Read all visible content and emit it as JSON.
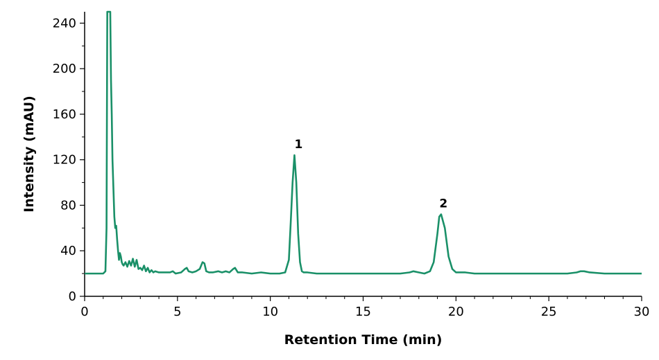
{
  "chart_data": {
    "type": "line",
    "title": "",
    "xlabel": "Retention Time (min)",
    "ylabel": "Intensity (mAU)",
    "xlim": [
      0,
      30
    ],
    "ylim": [
      0,
      250
    ],
    "x_ticks": [
      0,
      5,
      10,
      15,
      20,
      25,
      30
    ],
    "y_ticks": [
      0,
      40,
      80,
      120,
      160,
      200,
      240
    ],
    "grid": false,
    "line_color": "#1a9068",
    "series": [
      {
        "x": [
          0,
          1.0,
          1.12,
          1.18,
          1.22,
          1.26,
          1.3,
          1.34,
          1.38,
          1.42,
          1.46,
          1.5,
          1.55,
          1.6,
          1.65,
          1.7,
          1.75,
          1.8,
          1.85,
          1.9,
          1.95,
          2.0,
          2.05,
          2.1,
          2.2,
          2.3,
          2.4,
          2.5,
          2.6,
          2.7,
          2.8,
          2.9,
          3.0,
          3.1,
          3.2,
          3.3,
          3.4,
          3.5,
          3.6,
          3.7,
          3.8,
          4.0,
          4.3,
          4.6,
          4.75,
          4.9,
          5.2,
          5.4,
          5.5,
          5.6,
          5.8,
          6.0,
          6.2,
          6.35,
          6.45,
          6.55,
          6.7,
          6.9,
          7.2,
          7.4,
          7.6,
          7.8,
          8.0,
          8.1,
          8.25,
          8.5,
          9.0,
          9.5,
          10.0,
          10.5,
          10.8,
          11.0,
          11.1,
          11.2,
          11.3,
          11.4,
          11.5,
          11.6,
          11.7,
          11.8,
          12.0,
          12.5,
          13.0,
          14.0,
          15.0,
          16.0,
          17.0,
          17.5,
          17.7,
          18.0,
          18.3,
          18.6,
          18.8,
          19.0,
          19.1,
          19.2,
          19.4,
          19.6,
          19.8,
          20.0,
          20.5,
          21.0,
          22.0,
          23.0,
          24.0,
          25.0,
          26.0,
          26.5,
          26.7,
          26.9,
          27.2,
          28.0,
          29.0,
          30.0
        ],
        "values": [
          20,
          20,
          22,
          60,
          250,
          250,
          250,
          250,
          250,
          190,
          160,
          120,
          95,
          70,
          60,
          62,
          50,
          40,
          32,
          38,
          35,
          30,
          28,
          27,
          30,
          26,
          31,
          27,
          33,
          26,
          32,
          24,
          25,
          23,
          27,
          22,
          25,
          21,
          23,
          21,
          22,
          21,
          21,
          21,
          22,
          20,
          21,
          24,
          25,
          22,
          21,
          22,
          24,
          30,
          29,
          22,
          21,
          21,
          22,
          21,
          22,
          21,
          24,
          25,
          21,
          21,
          20,
          21,
          20,
          20,
          21,
          32,
          65,
          100,
          124,
          100,
          55,
          30,
          22,
          21,
          21,
          20,
          20,
          20,
          20,
          20,
          20,
          21,
          22,
          21,
          20,
          22,
          30,
          55,
          70,
          72,
          60,
          35,
          24,
          21,
          21,
          20,
          20,
          20,
          20,
          20,
          20,
          21,
          22,
          22,
          21,
          20,
          20,
          20
        ]
      }
    ],
    "annotations": [
      {
        "text": "1",
        "x": 11.3,
        "y": 124
      },
      {
        "text": "2",
        "x": 19.1,
        "y": 72
      }
    ]
  }
}
